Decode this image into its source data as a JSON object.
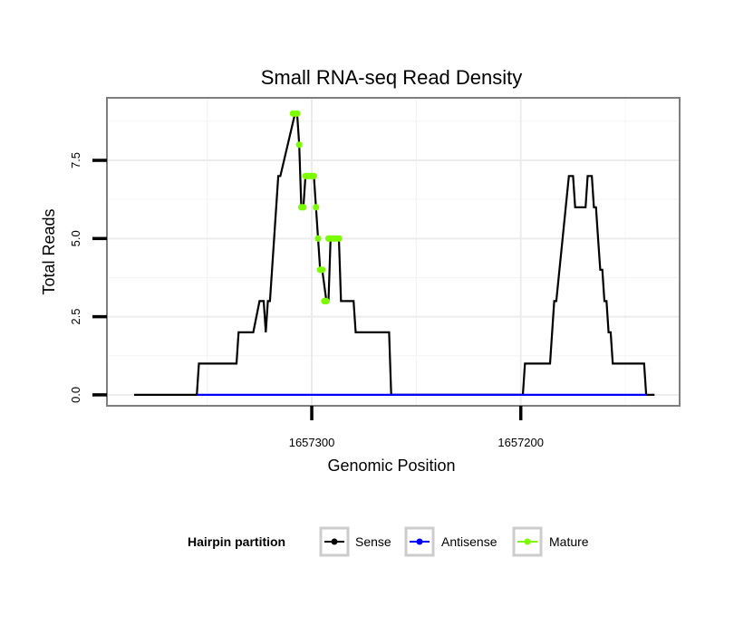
{
  "chart_data": {
    "type": "line",
    "title": "Small RNA-seq Read Density",
    "xlabel": "Genomic Position",
    "ylabel": "Total Reads",
    "x_reversed": true,
    "xlim": [
      1657398,
      1657124
    ],
    "ylim": [
      -0.35,
      9.5
    ],
    "x_ticks": [
      1657300,
      1657200
    ],
    "x_tick_labels": [
      "1657300",
      "1657200"
    ],
    "y_ticks": [
      0,
      2.5,
      5,
      7.5
    ],
    "y_tick_labels": [
      "0.0",
      "2.5",
      "5.0",
      "7.5"
    ],
    "grid": true,
    "legend": {
      "title": "Hairpin partition",
      "position": "bottom",
      "entries": [
        {
          "label": "Sense",
          "color": "#000000"
        },
        {
          "label": "Antisense",
          "color": "#0000ff"
        },
        {
          "label": "Mature",
          "color": "#7cfc00"
        }
      ]
    },
    "series": [
      {
        "name": "Sense",
        "color": "#000000",
        "x": [
          1657385,
          1657355,
          1657354,
          1657336,
          1657335,
          1657328,
          1657325,
          1657323,
          1657322,
          1657321,
          1657320,
          1657317,
          1657316,
          1657315,
          1657308,
          1657307,
          1657306,
          1657305,
          1657304,
          1657303,
          1657302,
          1657301,
          1657300,
          1657299,
          1657298,
          1657297,
          1657296,
          1657295,
          1657293,
          1657292,
          1657291,
          1657290,
          1657289,
          1657288,
          1657287,
          1657286,
          1657280,
          1657279,
          1657263,
          1657262,
          1657199,
          1657198,
          1657186,
          1657185,
          1657184,
          1657183,
          1657177,
          1657176,
          1657175,
          1657174,
          1657169,
          1657168,
          1657167,
          1657166,
          1657165,
          1657164,
          1657163,
          1657162,
          1657161,
          1657160,
          1657159,
          1657158,
          1657157,
          1657156,
          1657154,
          1657153,
          1657141,
          1657140,
          1657136
        ],
        "y": [
          0,
          0,
          1,
          1,
          2,
          2,
          3,
          3,
          2,
          3,
          3,
          6,
          7,
          7,
          9,
          9,
          8,
          6,
          6,
          7,
          7,
          7,
          7,
          7,
          6,
          5,
          4,
          4,
          3,
          3,
          5,
          5,
          5,
          5,
          5,
          3,
          3,
          2,
          2,
          0,
          0,
          1,
          1,
          2,
          3,
          3,
          7,
          7,
          7,
          6,
          6,
          7,
          7,
          7,
          6,
          6,
          5,
          4,
          4,
          3,
          3,
          2,
          2,
          1,
          1,
          1,
          1,
          0,
          0
        ]
      },
      {
        "name": "Antisense",
        "color": "#0000ff",
        "x": [
          1657355,
          1657140
        ],
        "y": [
          0,
          0
        ]
      },
      {
        "name": "Mature",
        "color": "#7cfc00",
        "x": [
          1657309,
          1657308,
          1657307,
          1657306,
          1657305,
          1657304,
          1657303,
          1657302,
          1657301,
          1657300,
          1657299,
          1657298,
          1657297,
          1657296,
          1657295,
          1657294,
          1657293,
          1657292,
          1657291,
          1657290,
          1657289,
          1657288,
          1657287
        ],
        "y": [
          9,
          9,
          9,
          8,
          6,
          6,
          7,
          7,
          7,
          7,
          7,
          6,
          5,
          4,
          4,
          3,
          3,
          5,
          5,
          5,
          5,
          5,
          5
        ]
      }
    ]
  }
}
